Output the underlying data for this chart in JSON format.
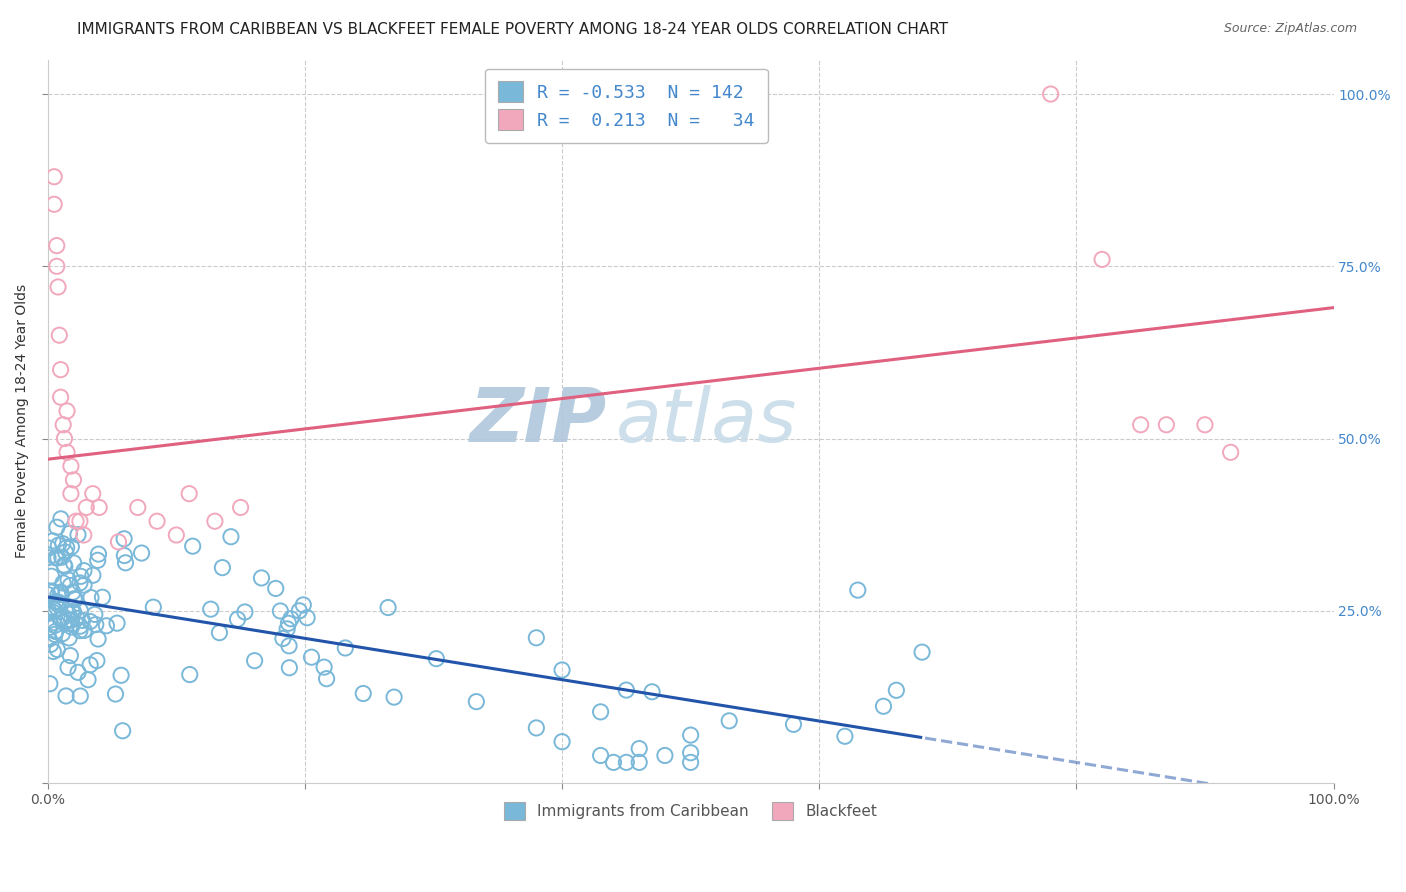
{
  "title": "IMMIGRANTS FROM CARIBBEAN VS BLACKFEET FEMALE POVERTY AMONG 18-24 YEAR OLDS CORRELATION CHART",
  "source": "Source: ZipAtlas.com",
  "ylabel": "Female Poverty Among 18-24 Year Olds",
  "legend_label1": "Immigrants from Caribbean",
  "legend_label2": "Blackfeet",
  "legend_R1": "-0.533",
  "legend_N1": "142",
  "legend_R2": " 0.213",
  "legend_N2": "  34",
  "blue_scatter": "#7ab8d9",
  "pink_scatter": "#f2a8bc",
  "line_blue": "#2255aa",
  "line_pink": "#e06080",
  "watermark_color": "#ccdde8",
  "background": "#ffffff",
  "title_fontsize": 11,
  "axis_fontsize": 10,
  "legend_fontsize": 13,
  "seed": 77,
  "blue_line_intercept": 0.27,
  "blue_line_slope": -0.3,
  "pink_line_intercept": 0.47,
  "pink_line_slope": 0.22
}
